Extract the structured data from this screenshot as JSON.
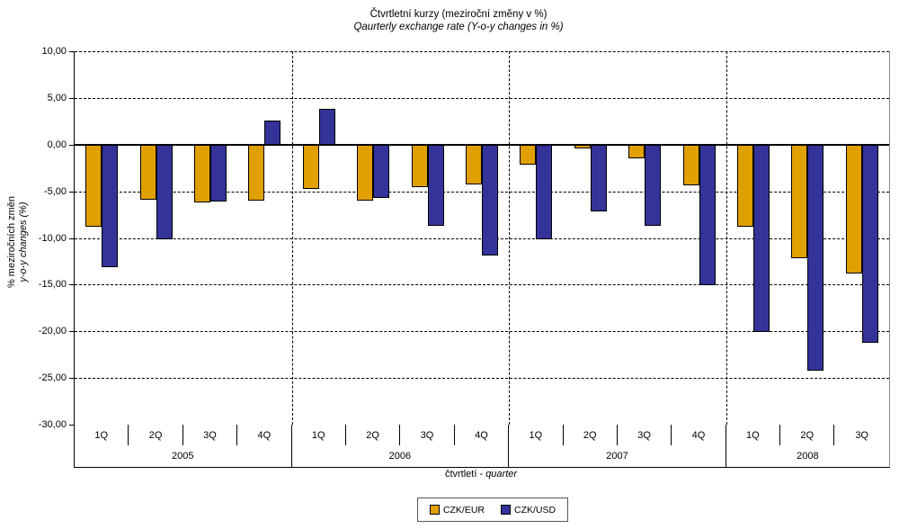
{
  "title": "Čtvrtletní kurzy (meziroční změny v %)",
  "subtitle": "Qaurterly exchange rate (Y-o-y changes in %)",
  "y_axis": {
    "label_line1": "% meziročních změn",
    "label_line2": "y-o-y changes (%)",
    "tick_labels": [
      "10,00",
      "5,00",
      "0,00",
      "-5,00",
      "-10,00",
      "-15,00",
      "-20,00",
      "-25,00",
      "-30,00"
    ]
  },
  "x_axis": {
    "caption_cz": "čtvrtletí - ",
    "caption_en": "quarter"
  },
  "legend": [
    {
      "label": "CZK/EUR",
      "color": "#E0A000"
    },
    {
      "label": "CZK/USD",
      "color": "#333399"
    }
  ],
  "chart_data": {
    "type": "bar",
    "title": "Čtvrtletní kurzy (meziroční změny v %)",
    "subtitle": "Qaurterly exchange rate (Y-o-y changes in %)",
    "xlabel": "čtvrtletí - quarter",
    "ylabel": "% meziročních změn / y-o-y changes (%)",
    "ylim": [
      -30,
      10
    ],
    "ytick_step": 5,
    "grid": "horizontal dashed, vertical dashed separators between years",
    "legend_position": "bottom center",
    "groups": [
      {
        "year": "2005",
        "quarters": [
          "1Q",
          "2Q",
          "3Q",
          "4Q"
        ]
      },
      {
        "year": "2006",
        "quarters": [
          "1Q",
          "2Q",
          "3Q",
          "4Q"
        ]
      },
      {
        "year": "2007",
        "quarters": [
          "1Q",
          "2Q",
          "3Q",
          "4Q"
        ]
      },
      {
        "year": "2008",
        "quarters": [
          "1Q",
          "2Q",
          "3Q"
        ]
      }
    ],
    "series": [
      {
        "name": "CZK/EUR",
        "color": "#E0A000",
        "values": [
          -8.8,
          -5.9,
          -6.2,
          -6.0,
          -4.7,
          -6.0,
          -4.6,
          -4.3,
          -2.1,
          -0.4,
          -1.5,
          -4.4,
          -8.8,
          -12.2,
          -13.8
        ]
      },
      {
        "name": "CZK/USD",
        "color": "#333399",
        "values": [
          -13.1,
          -10.1,
          -6.1,
          2.6,
          3.8,
          -5.7,
          -8.7,
          -11.9,
          -10.1,
          -7.2,
          -8.7,
          -15.1,
          -20.1,
          -24.2,
          -21.2
        ]
      }
    ]
  }
}
